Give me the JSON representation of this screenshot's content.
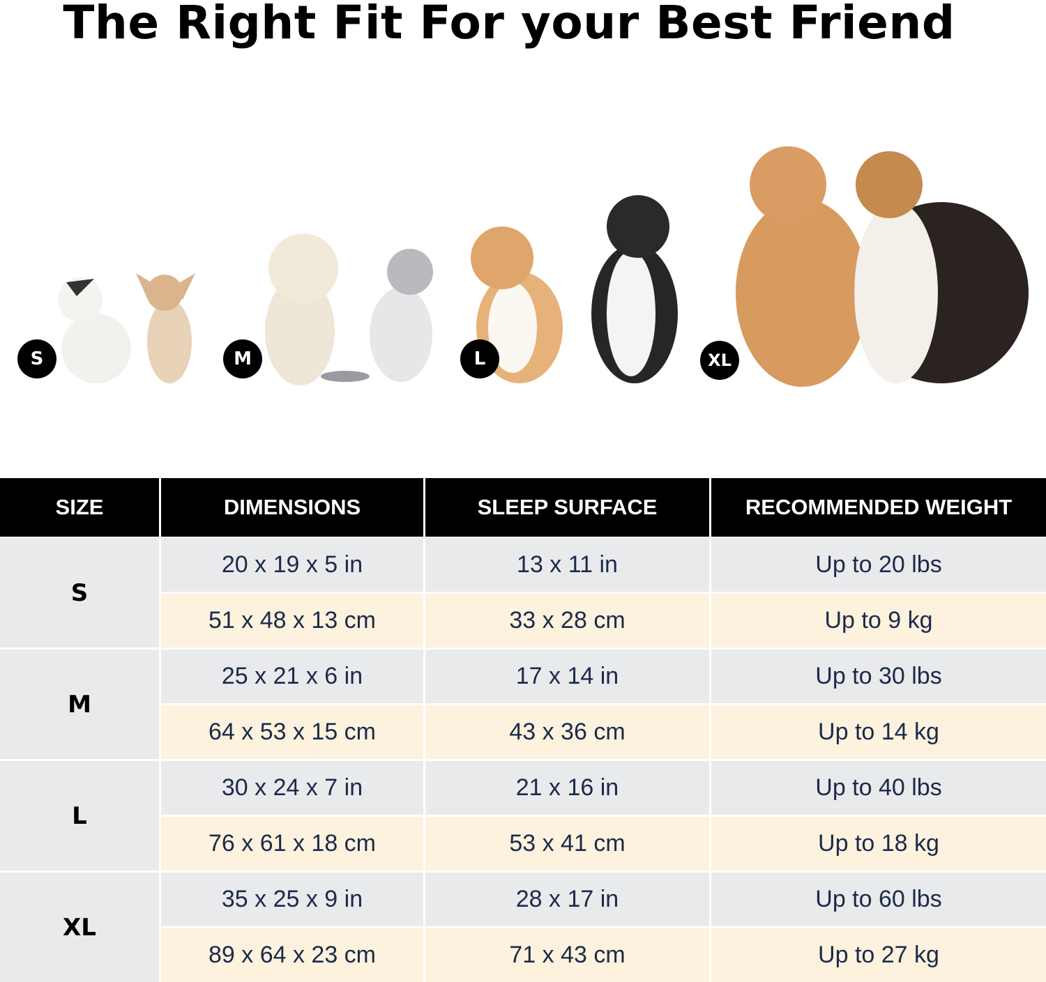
{
  "title": "The Right Fit For your Best Friend",
  "size_badges": [
    "S",
    "M",
    "L",
    "XL"
  ],
  "colors": {
    "header_bg": "#000000",
    "row_gray": "#e9eaec",
    "row_cream": "#fdf2dd",
    "value_text": "#1c2a4a"
  },
  "table": {
    "headers": [
      "SIZE",
      "DIMENSIONS",
      "SLEEP SURFACE",
      "RECOMMENDED WEIGHT"
    ],
    "rows": [
      {
        "size": "S",
        "imperial": [
          "20 x 19 x 5 in",
          "13 x 11 in",
          "Up to 20 lbs"
        ],
        "metric": [
          "51 x 48 x 13 cm",
          "33 x 28 cm",
          "Up to 9 kg"
        ]
      },
      {
        "size": "M",
        "imperial": [
          "25 x 21 x 6 in",
          "17 x 14 in",
          "Up to 30 lbs"
        ],
        "metric": [
          "64 x 53 x 15 cm",
          "43 x 36 cm",
          "Up to 14 kg"
        ]
      },
      {
        "size": "L",
        "imperial": [
          "30 x 24 x 7 in",
          "21 x 16 in",
          "Up to 40 lbs"
        ],
        "metric": [
          "76 x 61 x 18 cm",
          "53 x 41 cm",
          "Up to 18 kg"
        ]
      },
      {
        "size": "XL",
        "imperial": [
          "35 x 25 x 9 in",
          "28 x 17 in",
          "Up to 60 lbs"
        ],
        "metric": [
          "89 x 64 x 23 cm",
          "71 x 43 cm",
          "Up to 27 kg"
        ]
      }
    ]
  }
}
